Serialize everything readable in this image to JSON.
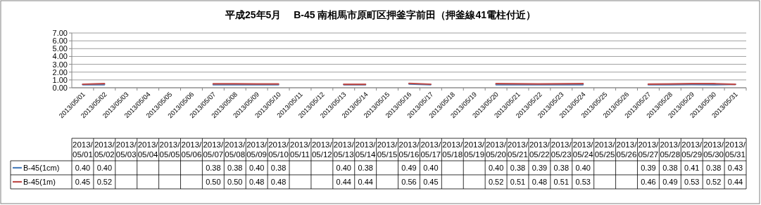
{
  "chart_data": {
    "type": "line",
    "title": "平成25年5月　 B-45 南相馬市原町区押釜字前田（押釜線41電柱付近）",
    "categories": [
      "2013/05/01",
      "2013/05/02",
      "2013/05/03",
      "2013/05/04",
      "2013/05/05",
      "2013/05/06",
      "2013/05/07",
      "2013/05/08",
      "2013/05/09",
      "2013/05/10",
      "2013/05/11",
      "2013/05/12",
      "2013/05/13",
      "2013/05/14",
      "2013/05/15",
      "2013/05/16",
      "2013/05/17",
      "2013/05/18",
      "2013/05/19",
      "2013/05/20",
      "2013/05/21",
      "2013/05/22",
      "2013/05/23",
      "2013/05/24",
      "2013/05/25",
      "2013/05/26",
      "2013/05/27",
      "2013/05/28",
      "2013/05/29",
      "2013/05/30",
      "2013/05/31"
    ],
    "series": [
      {
        "name": "B-45(1cm)",
        "color": "#4a7ebb",
        "values": [
          0.4,
          0.4,
          null,
          null,
          null,
          null,
          0.38,
          0.38,
          0.4,
          0.38,
          null,
          null,
          0.4,
          0.38,
          null,
          0.49,
          0.4,
          null,
          null,
          0.4,
          0.38,
          0.39,
          0.38,
          0.4,
          null,
          null,
          0.39,
          0.38,
          0.41,
          0.38,
          0.43
        ],
        "value_labels": [
          "0.40",
          "0.40",
          null,
          null,
          null,
          null,
          "0.38",
          "0.38",
          "0.40",
          "0.38",
          null,
          null,
          "0.40",
          "0.38",
          null,
          "0.49",
          "0.40",
          null,
          null,
          "0.40",
          "0.38",
          "0.39",
          "0.38",
          "0.40",
          null,
          null,
          "0.39",
          "0.38",
          "0.41",
          "0.38",
          "0.43"
        ]
      },
      {
        "name": "B-45(1m)",
        "color": "#be4b48",
        "values": [
          0.45,
          0.52,
          null,
          null,
          null,
          null,
          0.5,
          0.5,
          0.48,
          0.48,
          null,
          null,
          0.44,
          0.44,
          null,
          0.56,
          0.45,
          null,
          null,
          0.52,
          0.51,
          0.48,
          0.51,
          0.53,
          null,
          null,
          0.46,
          0.49,
          0.53,
          0.52,
          0.44
        ],
        "value_labels": [
          "0.45",
          "0.52",
          null,
          null,
          null,
          null,
          "0.50",
          "0.50",
          "0.48",
          "0.48",
          null,
          null,
          "0.44",
          "0.44",
          null,
          "0.56",
          "0.45",
          null,
          null,
          "0.52",
          "0.51",
          "0.48",
          "0.51",
          "0.53",
          null,
          null,
          "0.46",
          "0.49",
          "0.53",
          "0.52",
          "0.44"
        ]
      }
    ],
    "ylim": [
      0,
      7
    ],
    "yticks": [
      {
        "value": 0,
        "label": "0.00"
      },
      {
        "value": 1,
        "label": "1.00"
      },
      {
        "value": 2,
        "label": "2.00"
      },
      {
        "value": 3,
        "label": "3.00"
      },
      {
        "value": 4,
        "label": "4.00"
      },
      {
        "value": 5,
        "label": "5.00"
      },
      {
        "value": 6,
        "label": "6.00"
      },
      {
        "value": 7,
        "label": "7.00"
      }
    ],
    "grid": "y",
    "legend": "bottom",
    "marker": "none",
    "line_style": "solid"
  }
}
